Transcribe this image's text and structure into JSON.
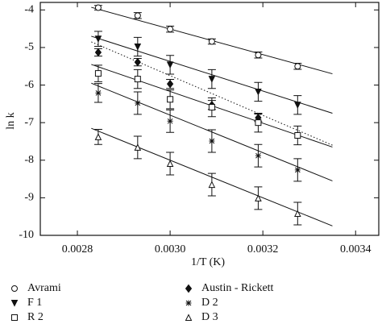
{
  "chart_data": {
    "type": "scatter",
    "x_label": "1/T (K)",
    "y_label": "ln k",
    "xlim": [
      0.00272,
      0.00345
    ],
    "ylim": [
      -10,
      -3.8
    ],
    "xticks": [
      0.0028,
      {
        "value": 0.003,
        "label": "0.0030"
      },
      0.0032,
      0.0034
    ],
    "yticks": [
      -10,
      -9,
      -8,
      -7,
      -6,
      -5,
      -4
    ],
    "x": [
      0.002845,
      0.00293,
      0.003,
      0.00309,
      0.00319,
      0.003275
    ],
    "fit_x": [
      0.00283,
      0.00335
    ],
    "series": [
      {
        "name": "Avrami",
        "marker": "circle",
        "line_style": "solid",
        "color": "#111",
        "values": [
          -3.94,
          -4.15,
          -4.51,
          -4.84,
          -5.2,
          -5.5
        ],
        "errors": [
          0.06,
          0.08,
          0.08,
          0.07,
          0.08,
          0.08
        ],
        "fit_values": [
          -3.93,
          -5.7
        ]
      },
      {
        "name": "Austin - Rickett",
        "marker": "diamond",
        "line_style": "dotted",
        "color": "#111",
        "values": [
          -5.13,
          -5.39,
          -5.97,
          -6.53,
          -6.87,
          null
        ],
        "errors": [
          0.1,
          0.1,
          0.12,
          0.12,
          0.1,
          null
        ],
        "fit_values": [
          -4.85,
          -7.6
        ]
      },
      {
        "name": "F 1",
        "marker": "triangle-down",
        "line_style": "solid",
        "color": "#111",
        "values": [
          -4.77,
          -4.98,
          -5.46,
          -5.84,
          -6.18,
          -6.53
        ],
        "errors": [
          0.2,
          0.25,
          0.25,
          0.25,
          0.25,
          0.25
        ],
        "fit_values": [
          -4.7,
          -6.75
        ]
      },
      {
        "name": "D 2",
        "marker": "asterisk",
        "line_style": "solid",
        "color": "#111",
        "values": [
          -6.21,
          -6.48,
          -6.96,
          -7.49,
          -7.88,
          -8.26
        ],
        "errors": [
          0.25,
          0.3,
          0.3,
          0.3,
          0.3,
          0.3
        ],
        "fit_values": [
          -5.95,
          -8.55
        ]
      },
      {
        "name": "R 2",
        "marker": "square",
        "line_style": "solid",
        "color": "#111",
        "values": [
          -5.69,
          -5.84,
          -6.38,
          -6.59,
          -7.0,
          -7.34
        ],
        "errors": [
          0.22,
          0.25,
          0.25,
          0.25,
          0.25,
          0.25
        ],
        "fit_values": [
          -5.45,
          -7.65
        ]
      },
      {
        "name": "D 3",
        "marker": "triangle-up",
        "line_style": "solid",
        "color": "#111",
        "values": [
          -7.38,
          -7.66,
          -8.09,
          -8.65,
          -9.01,
          -9.42
        ],
        "errors": [
          0.2,
          0.3,
          0.3,
          0.3,
          0.3,
          0.3
        ],
        "fit_values": [
          -7.15,
          -9.75
        ]
      }
    ]
  }
}
